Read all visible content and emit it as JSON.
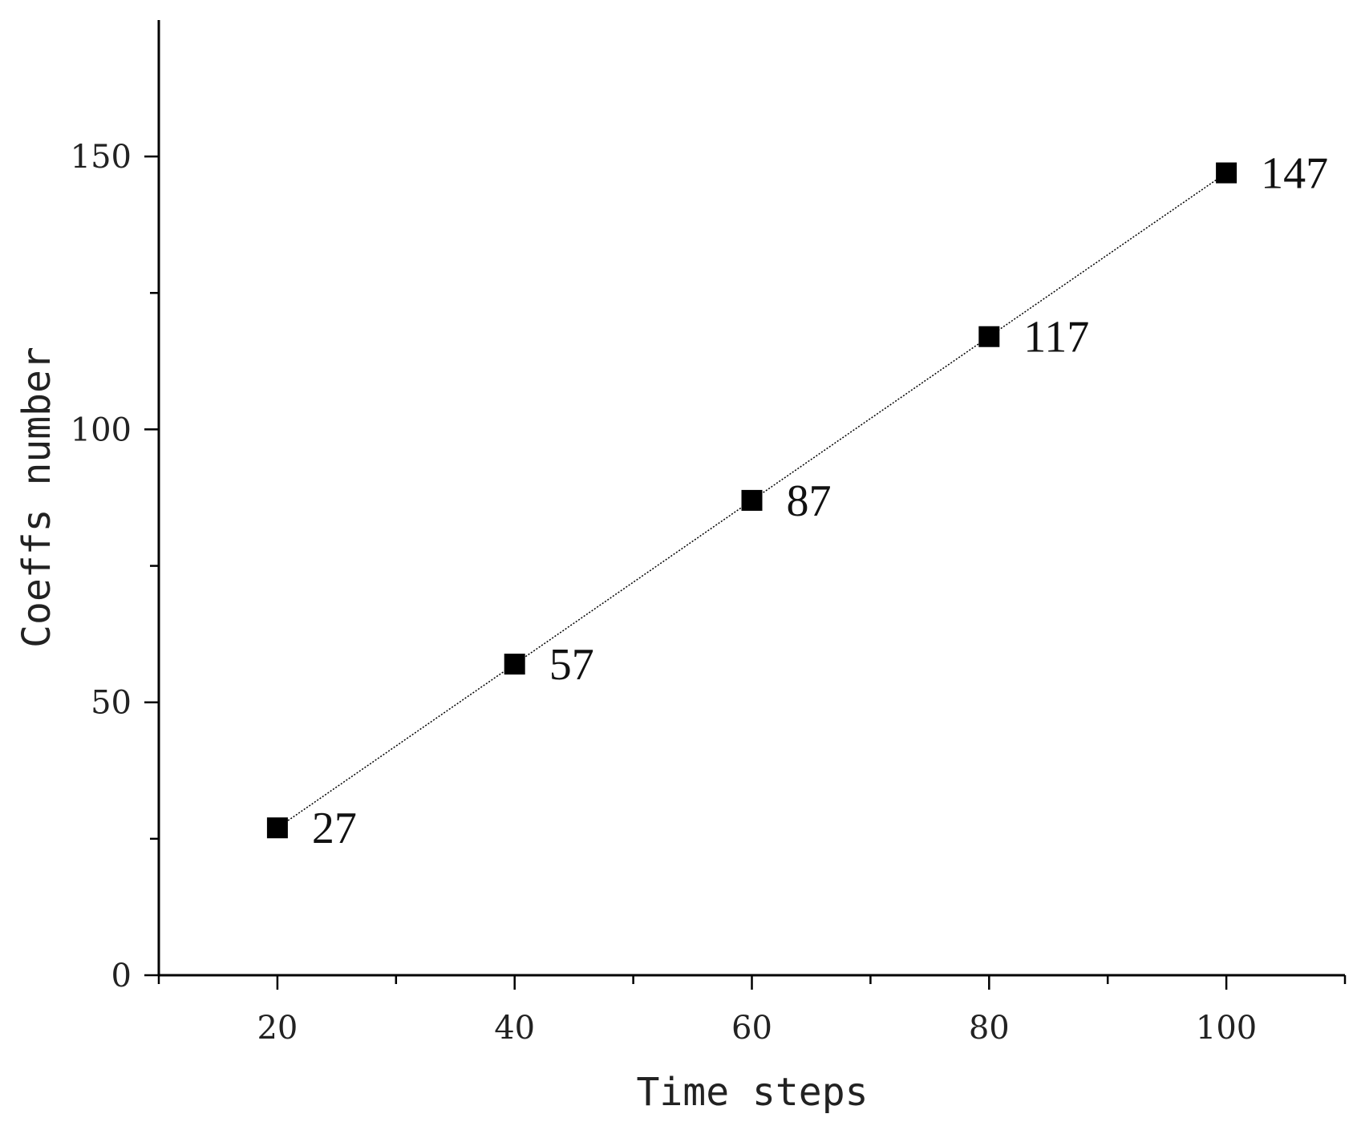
{
  "chart_data": {
    "type": "line",
    "title": "",
    "xlabel": "Time steps",
    "ylabel": "Coeffs number",
    "xlim": [
      10,
      110
    ],
    "ylim": [
      0,
      175
    ],
    "x_ticks": [
      20,
      40,
      60,
      80,
      100
    ],
    "x_minor_ticks": [
      10,
      30,
      50,
      70,
      90,
      110
    ],
    "y_ticks": [
      0,
      50,
      100,
      150
    ],
    "y_minor_ticks": [
      25,
      75,
      125
    ],
    "grid": false,
    "marker": "square",
    "line_style": "dotted",
    "colors": {
      "marker": "#000000",
      "line": "#000000",
      "axis": "#000000"
    },
    "series": [
      {
        "x": [
          20,
          40,
          60,
          80,
          100
        ],
        "values": [
          27,
          57,
          87,
          117,
          147
        ],
        "labels": [
          "27",
          "57",
          "87",
          "117",
          "147"
        ]
      }
    ]
  }
}
